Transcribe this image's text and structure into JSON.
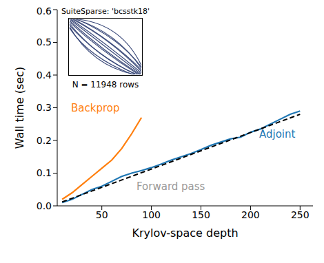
{
  "chart_data": {
    "type": "line",
    "xlabel": "Krylov-space depth",
    "ylabel": "Wall time (sec)",
    "xlim": [
      5,
      263
    ],
    "xticks": [
      50,
      100,
      150,
      200,
      250
    ],
    "ylim": [
      0,
      0.6
    ],
    "yticks": [
      {
        "value": 0,
        "label": "0.0"
      },
      {
        "value": 0.1,
        "label": "0.1"
      },
      {
        "value": 0.2,
        "label": "0.2"
      },
      {
        "value": 0.3,
        "label": "0.3"
      },
      {
        "value": 0.4,
        "label": "0.4"
      },
      {
        "value": 0.5,
        "label": "0.5"
      },
      {
        "value": 0.6,
        "label": "0.6"
      }
    ],
    "series": [
      {
        "name": "Backprop",
        "color": "#ff7f0e",
        "line_style": "solid",
        "x": [
          10,
          20,
          30,
          40,
          50,
          60,
          70,
          80,
          90
        ],
        "values": [
          0.02,
          0.04,
          0.065,
          0.09,
          0.115,
          0.14,
          0.175,
          0.22,
          0.27
        ]
      },
      {
        "name": "Adjoint",
        "color": "#1f77b4",
        "line_style": "solid",
        "x": [
          10,
          20,
          30,
          40,
          50,
          60,
          70,
          80,
          90,
          100,
          110,
          120,
          130,
          140,
          150,
          160,
          170,
          180,
          190,
          200,
          210,
          220,
          230,
          240,
          250
        ],
        "values": [
          0.01,
          0.02,
          0.035,
          0.05,
          0.06,
          0.075,
          0.09,
          0.1,
          0.108,
          0.117,
          0.128,
          0.14,
          0.15,
          0.16,
          0.172,
          0.185,
          0.195,
          0.205,
          0.21,
          0.225,
          0.235,
          0.25,
          0.265,
          0.28,
          0.29
        ]
      },
      {
        "name": "Forward pass",
        "color": "#000000",
        "line_style": "dashed",
        "x": [
          10,
          250
        ],
        "values": [
          0.012,
          0.28
        ]
      }
    ],
    "inset": {
      "title": "SuiteSparse: 'bcsstk18'",
      "label": "N = 11948 rows"
    }
  }
}
